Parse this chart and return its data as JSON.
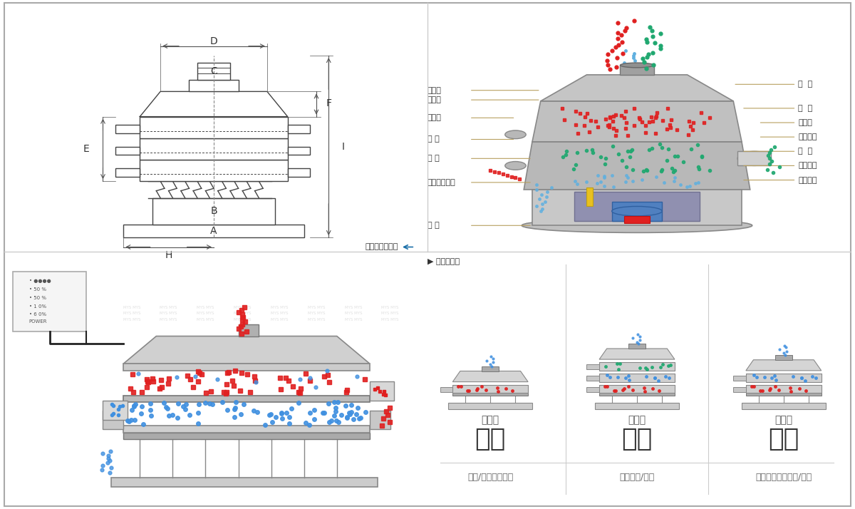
{
  "bg_color": "#ffffff",
  "border_color": "#cccccc",
  "panel_divider_color": "#dddddd",
  "top_left": {
    "title": "外形尺寸示意图",
    "title_color": "#333333",
    "arrow_color": "#1a6fa8",
    "dim_labels": [
      "A",
      "B",
      "C",
      "D",
      "E",
      "F",
      "H",
      "I"
    ],
    "line_color": "#555555"
  },
  "top_right": {
    "title": "结构示意图",
    "title_color": "#333333",
    "arrow_color": "#e8a020",
    "left_labels": [
      "进料口",
      "防尘盖",
      "出料口",
      "束 环",
      "弹 簧",
      "运输固定螺栓",
      "机 座"
    ],
    "right_labels": [
      "筛  网",
      "网  架",
      "加重块",
      "上部重锤",
      "筛  盘",
      "振动电机",
      "下部重锤"
    ],
    "particle_colors": {
      "red": "#e02020",
      "green": "#20a060",
      "blue": "#4090d0"
    }
  },
  "bottom_left": {
    "particle_red": "#e02020",
    "particle_blue": "#4090d0",
    "control_bg": "#f0f0f0",
    "line_color": "#333333"
  },
  "bottom_right": {
    "sections": [
      {
        "title": "分级",
        "subtitle": "单层式",
        "desc": "颗粒/粉末准确分级"
      },
      {
        "title": "过滤",
        "subtitle": "三层式",
        "desc": "去除异物/结块"
      },
      {
        "title": "除杂",
        "subtitle": "双层式",
        "desc": "去除液体中的颗粒/异物"
      }
    ],
    "title_color": "#333333",
    "subtitle_color": "#555555",
    "desc_color": "#666666",
    "divider_color": "#aaaaaa",
    "title_fontsize": 28,
    "subtitle_fontsize": 11,
    "desc_fontsize": 10
  }
}
